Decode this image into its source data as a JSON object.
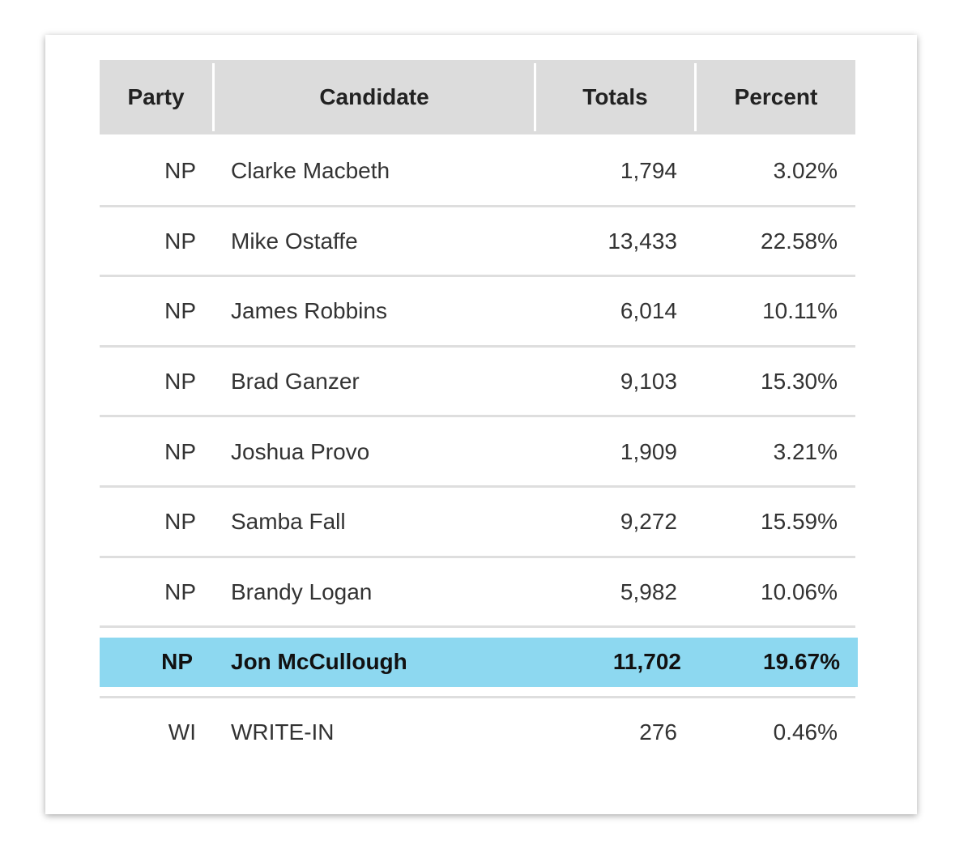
{
  "table": {
    "header": [
      "Party",
      "Candidate",
      "Totals",
      "Percent"
    ],
    "rows": [
      {
        "party": "NP",
        "candidate": "Clarke Macbeth",
        "totals": "1,794",
        "percent": "3.02%"
      },
      {
        "party": "NP",
        "candidate": "Mike Ostaffe",
        "totals": "13,433",
        "percent": "22.58%"
      },
      {
        "party": "NP",
        "candidate": "James Robbins",
        "totals": "6,014",
        "percent": "10.11%"
      },
      {
        "party": "NP",
        "candidate": "Brad Ganzer",
        "totals": "9,103",
        "percent": "15.30%"
      },
      {
        "party": "NP",
        "candidate": "Joshua Provo",
        "totals": "1,909",
        "percent": "3.21%"
      },
      {
        "party": "NP",
        "candidate": "Samba Fall",
        "totals": "9,272",
        "percent": "15.59%"
      },
      {
        "party": "NP",
        "candidate": "Brandy Logan",
        "totals": "5,982",
        "percent": "10.06%"
      },
      {
        "party": "NP",
        "candidate": "Jon McCullough",
        "totals": "11,702",
        "percent": "19.67%",
        "highlighted": true
      },
      {
        "party": "WI",
        "candidate": "WRITE-IN",
        "totals": "276",
        "percent": "0.46%"
      }
    ]
  }
}
